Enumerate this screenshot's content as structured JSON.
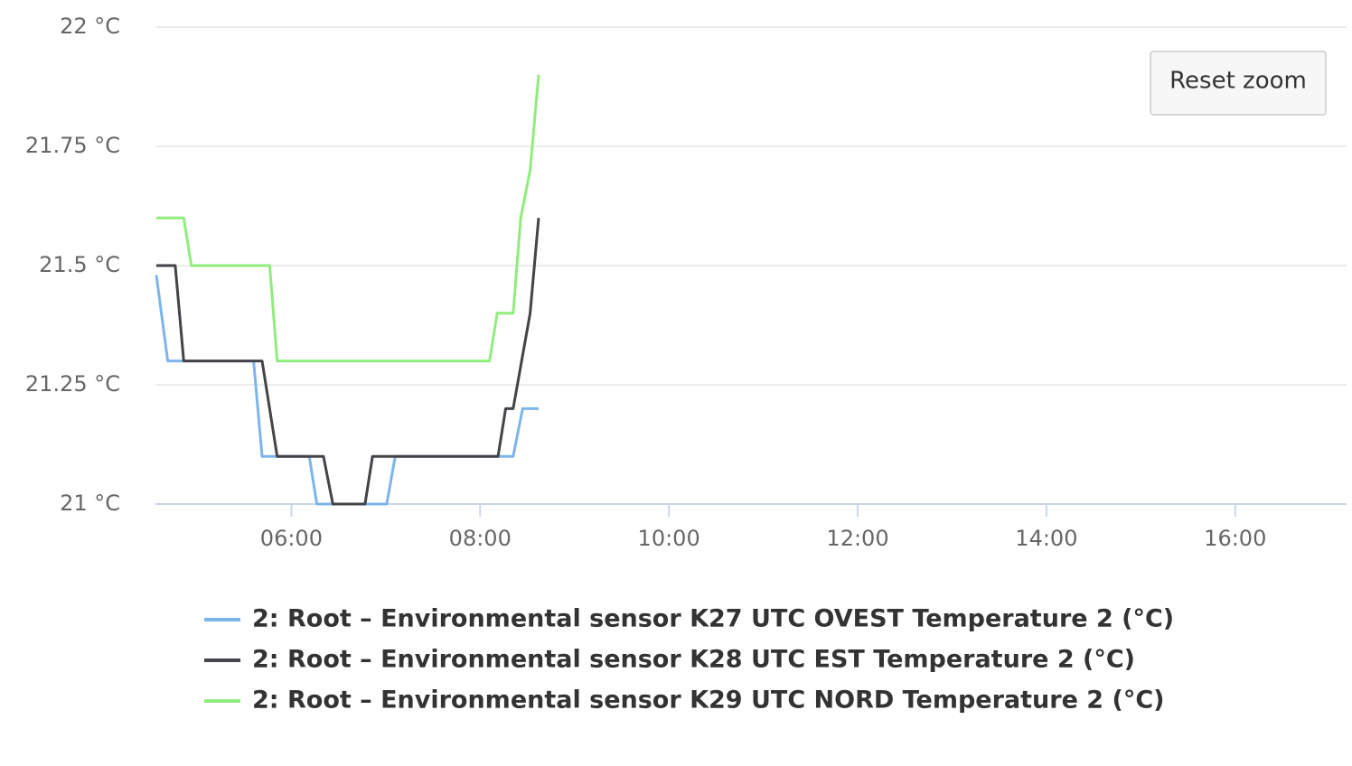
{
  "chart_data": {
    "type": "line",
    "reset_zoom": "Reset zoom",
    "xlim": [
      4.56,
      17.18
    ],
    "xticks": [
      {
        "value": 6,
        "label": "06:00"
      },
      {
        "value": 8,
        "label": "08:00"
      },
      {
        "value": 10,
        "label": "10:00"
      },
      {
        "value": 12,
        "label": "12:00"
      },
      {
        "value": 14,
        "label": "14:00"
      },
      {
        "value": 16,
        "label": "16:00"
      }
    ],
    "ylim": [
      21,
      22
    ],
    "yticks": [
      {
        "value": 21,
        "label": "21 °C"
      },
      {
        "value": 21.25,
        "label": "21.25 °C"
      },
      {
        "value": 21.5,
        "label": "21.5 °C"
      },
      {
        "value": 21.75,
        "label": "21.75 °C"
      },
      {
        "value": 22,
        "label": "22 °C"
      }
    ],
    "grid": true,
    "legend": "bottom",
    "series": [
      {
        "name": "2: Root – Environmental sensor K27 UTC OVEST Temperature 2 (°C)",
        "color": "#7cb5ec",
        "x": [
          4.57,
          4.69,
          5.6,
          5.69,
          6.19,
          6.27,
          7.01,
          7.1,
          8.35,
          8.45,
          8.62
        ],
        "values": [
          21.48,
          21.3,
          21.3,
          21.1,
          21.1,
          21,
          21,
          21.1,
          21.1,
          21.2,
          21.2
        ]
      },
      {
        "name": "2: Root – Environmental sensor K28 UTC EST Temperature 2 (°C)",
        "color": "#434348",
        "x": [
          4.57,
          4.77,
          4.86,
          5.69,
          5.85,
          6.34,
          6.44,
          6.78,
          6.86,
          8.19,
          8.27,
          8.35,
          8.53,
          8.62
        ],
        "values": [
          21.5,
          21.5,
          21.3,
          21.3,
          21.1,
          21.1,
          21,
          21,
          21.1,
          21.1,
          21.2,
          21.2,
          21.4,
          21.6
        ]
      },
      {
        "name": "2: Root – Environmental sensor K29 UTC NORD Temperature 2 (°C)",
        "color": "#90ed7d",
        "x": [
          4.57,
          4.86,
          4.94,
          5.77,
          5.85,
          8.1,
          8.18,
          8.35,
          8.43,
          8.53,
          8.62
        ],
        "values": [
          21.6,
          21.6,
          21.5,
          21.5,
          21.3,
          21.3,
          21.4,
          21.4,
          21.6,
          21.7,
          21.9
        ]
      }
    ]
  }
}
